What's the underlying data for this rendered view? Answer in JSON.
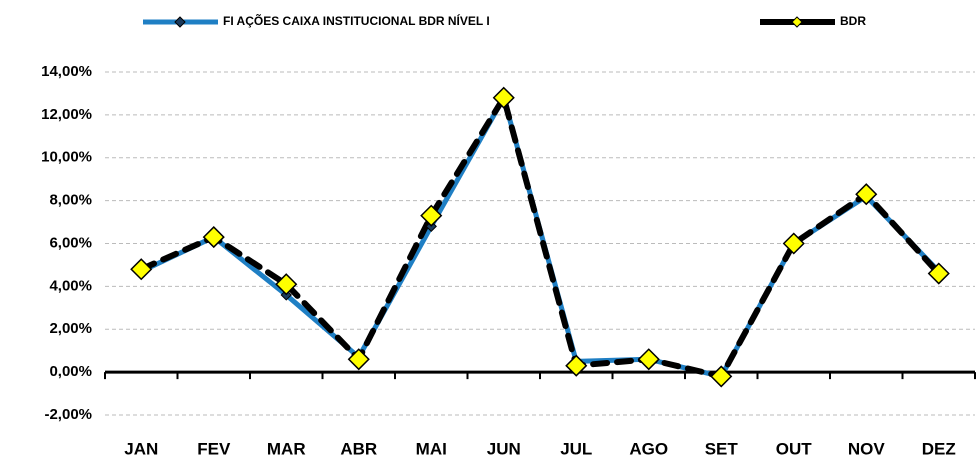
{
  "chart_data": {
    "type": "line",
    "categories": [
      "JAN",
      "FEV",
      "MAR",
      "ABR",
      "MAI",
      "JUN",
      "JUL",
      "AGO",
      "SET",
      "OUT",
      "NOV",
      "DEZ"
    ],
    "series": [
      {
        "name": "FI AÇÕES CAIXA INSTITUCIONAL BDR NÍVEL I",
        "color": "#1f7fc4",
        "values": [
          4.7,
          6.3,
          3.6,
          0.7,
          6.8,
          12.8,
          0.5,
          0.6,
          -0.2,
          6.0,
          8.2,
          4.7
        ]
      },
      {
        "name": "BDR",
        "color": "#000000",
        "marker_color": "#ffff00",
        "values": [
          4.8,
          6.3,
          4.1,
          0.6,
          7.3,
          12.8,
          0.3,
          0.6,
          -0.2,
          6.0,
          8.3,
          4.6
        ]
      }
    ],
    "ylim": [
      -2,
      14
    ],
    "yticks": [
      {
        "value": -2,
        "label": "-2,00%"
      },
      {
        "value": 0,
        "label": "0,00%"
      },
      {
        "value": 2,
        "label": "2,00%"
      },
      {
        "value": 4,
        "label": "4,00%"
      },
      {
        "value": 6,
        "label": "6,00%"
      },
      {
        "value": 8,
        "label": "8,00%"
      },
      {
        "value": 10,
        "label": "10,00%"
      },
      {
        "value": 12,
        "label": "12,00%"
      },
      {
        "value": 14,
        "label": "14,00%"
      }
    ],
    "grid": true,
    "legend": "top"
  }
}
